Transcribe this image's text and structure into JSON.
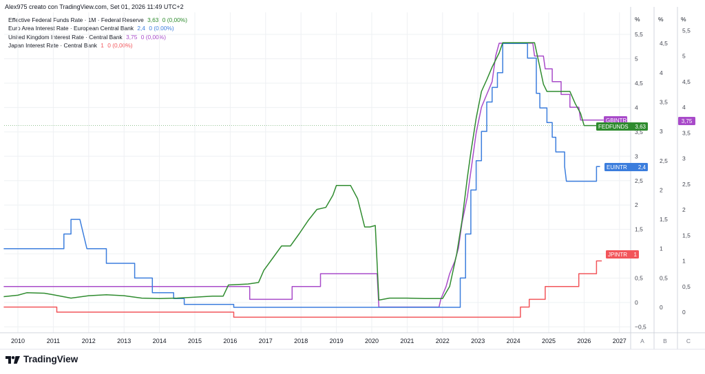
{
  "header": "Alex975 creato con TradingView.com, Set 01, 2026 11:49 UTC+2",
  "brand": "TradingView",
  "colors": {
    "fed": "#2e8b2e",
    "eu": "#3b7ddd",
    "uk": "#a84ac9",
    "jp": "#f2555a",
    "grid": "#eef0f3",
    "axis_text": "#131722"
  },
  "chart_data": {
    "type": "line",
    "title": "",
    "x_ticks": [
      "2010",
      "2011",
      "2012",
      "2013",
      "2014",
      "2015",
      "2016",
      "2017",
      "2018",
      "2019",
      "2020",
      "2021",
      "2022",
      "2023",
      "2024",
      "2025",
      "2026",
      "2027"
    ],
    "axes": {
      "A": {
        "unit": "%",
        "ticks": [
          "5,5",
          "5",
          "4,5",
          "4",
          "3,5",
          "3",
          "2,5",
          "2",
          "1,5",
          "1",
          "0,5",
          "0",
          "−0,5"
        ],
        "range": [
          -0.5,
          5.5
        ]
      },
      "B": {
        "unit": "%",
        "ticks": [
          "4,5",
          "4",
          "3,5",
          "3",
          "2,5",
          "2",
          "1,5",
          "1",
          "0,5",
          "0"
        ],
        "range": [
          0,
          4.5
        ]
      },
      "C": {
        "unit": "%",
        "ticks": [
          "5,5",
          "5",
          "4,5",
          "4",
          "3,5",
          "3",
          "2,5",
          "2",
          "1,5",
          "1",
          "0,5",
          "0"
        ],
        "range": [
          0,
          5.5
        ]
      }
    },
    "axis_letters": [
      "A",
      "B",
      "C"
    ],
    "series": [
      {
        "key": "fed",
        "name": "Effective Federal Funds Rate · 1M · Federal Reserve",
        "last": "3,63",
        "change": "0 (0,00%)",
        "tag": "FEDFUNDS",
        "tag_value": "3,63",
        "axis": "A",
        "points": [
          [
            2009.6,
            0.12
          ],
          [
            2010.0,
            0.15
          ],
          [
            2010.25,
            0.2
          ],
          [
            2010.75,
            0.19
          ],
          [
            2011.0,
            0.16
          ],
          [
            2011.5,
            0.09
          ],
          [
            2012.0,
            0.14
          ],
          [
            2012.5,
            0.16
          ],
          [
            2013.0,
            0.14
          ],
          [
            2013.5,
            0.09
          ],
          [
            2014.0,
            0.08
          ],
          [
            2014.5,
            0.09
          ],
          [
            2015.0,
            0.11
          ],
          [
            2015.5,
            0.13
          ],
          [
            2015.8,
            0.13
          ],
          [
            2015.95,
            0.36
          ],
          [
            2016.5,
            0.38
          ],
          [
            2016.8,
            0.41
          ],
          [
            2016.95,
            0.66
          ],
          [
            2017.2,
            0.91
          ],
          [
            2017.45,
            1.16
          ],
          [
            2017.7,
            1.16
          ],
          [
            2017.95,
            1.41
          ],
          [
            2018.2,
            1.68
          ],
          [
            2018.45,
            1.91
          ],
          [
            2018.7,
            1.95
          ],
          [
            2018.9,
            2.2
          ],
          [
            2019.0,
            2.4
          ],
          [
            2019.4,
            2.4
          ],
          [
            2019.6,
            2.13
          ],
          [
            2019.8,
            1.55
          ],
          [
            2019.95,
            1.55
          ],
          [
            2020.1,
            1.58
          ],
          [
            2020.2,
            0.05
          ],
          [
            2020.5,
            0.09
          ],
          [
            2020.8,
            0.09
          ],
          [
            2021.0,
            0.09
          ],
          [
            2021.5,
            0.08
          ],
          [
            2022.0,
            0.08
          ],
          [
            2022.2,
            0.33
          ],
          [
            2022.4,
            1.0
          ],
          [
            2022.55,
            1.68
          ],
          [
            2022.7,
            2.56
          ],
          [
            2022.8,
            3.08
          ],
          [
            2022.95,
            3.78
          ],
          [
            2023.1,
            4.33
          ],
          [
            2023.25,
            4.57
          ],
          [
            2023.4,
            4.83
          ],
          [
            2023.6,
            5.12
          ],
          [
            2023.7,
            5.33
          ],
          [
            2024.6,
            5.33
          ],
          [
            2024.75,
            4.83
          ],
          [
            2024.85,
            4.48
          ],
          [
            2024.95,
            4.33
          ],
          [
            2025.6,
            4.33
          ],
          [
            2025.75,
            4.08
          ],
          [
            2025.9,
            3.88
          ],
          [
            2026.0,
            3.63
          ],
          [
            2026.5,
            3.63
          ]
        ]
      },
      {
        "key": "eu",
        "name": "Euro Area Interest Rate · European Central Bank",
        "last": "2,4",
        "change": "0 (0,00%)",
        "tag": "EUINTR",
        "tag_value": "2,4",
        "axis": "B",
        "points": [
          [
            2009.6,
            1.0
          ],
          [
            2011.3,
            1.0
          ],
          [
            2011.3,
            1.25
          ],
          [
            2011.5,
            1.25
          ],
          [
            2011.5,
            1.5
          ],
          [
            2011.75,
            1.5
          ],
          [
            2011.85,
            1.25
          ],
          [
            2011.95,
            1.0
          ],
          [
            2012.5,
            1.0
          ],
          [
            2012.5,
            0.75
          ],
          [
            2013.3,
            0.75
          ],
          [
            2013.3,
            0.5
          ],
          [
            2013.8,
            0.5
          ],
          [
            2013.8,
            0.25
          ],
          [
            2014.4,
            0.25
          ],
          [
            2014.4,
            0.15
          ],
          [
            2014.7,
            0.15
          ],
          [
            2014.7,
            0.05
          ],
          [
            2016.1,
            0.05
          ],
          [
            2016.1,
            0.0
          ],
          [
            2022.5,
            0.0
          ],
          [
            2022.5,
            0.5
          ],
          [
            2022.65,
            0.5
          ],
          [
            2022.65,
            1.25
          ],
          [
            2022.8,
            1.25
          ],
          [
            2022.8,
            2.0
          ],
          [
            2022.95,
            2.0
          ],
          [
            2022.95,
            2.5
          ],
          [
            2023.1,
            2.5
          ],
          [
            2023.1,
            3.0
          ],
          [
            2023.25,
            3.0
          ],
          [
            2023.25,
            3.5
          ],
          [
            2023.4,
            3.5
          ],
          [
            2023.4,
            3.75
          ],
          [
            2023.55,
            3.75
          ],
          [
            2023.55,
            4.0
          ],
          [
            2023.7,
            4.0
          ],
          [
            2023.7,
            4.5
          ],
          [
            2024.4,
            4.5
          ],
          [
            2024.4,
            4.25
          ],
          [
            2024.65,
            4.25
          ],
          [
            2024.65,
            3.65
          ],
          [
            2024.75,
            3.65
          ],
          [
            2024.75,
            3.4
          ],
          [
            2024.95,
            3.4
          ],
          [
            2024.95,
            3.15
          ],
          [
            2025.1,
            3.15
          ],
          [
            2025.1,
            2.9
          ],
          [
            2025.2,
            2.9
          ],
          [
            2025.2,
            2.65
          ],
          [
            2025.45,
            2.65
          ],
          [
            2025.45,
            2.4
          ],
          [
            2025.5,
            2.15
          ],
          [
            2026.35,
            2.15
          ],
          [
            2026.35,
            2.4
          ],
          [
            2026.45,
            2.4
          ]
        ]
      },
      {
        "key": "uk",
        "name": "United Kingdom Interest Rate · Central Bank",
        "last": "3,75",
        "change": "0 (0,00%)",
        "tag": "GBINTR",
        "tag_value": "3,75",
        "axis": "C",
        "points": [
          [
            2009.6,
            0.5
          ],
          [
            2016.55,
            0.5
          ],
          [
            2016.55,
            0.25
          ],
          [
            2017.75,
            0.25
          ],
          [
            2017.75,
            0.5
          ],
          [
            2018.55,
            0.5
          ],
          [
            2018.55,
            0.75
          ],
          [
            2020.15,
            0.75
          ],
          [
            2020.2,
            0.1
          ],
          [
            2021.9,
            0.1
          ],
          [
            2021.95,
            0.25
          ],
          [
            2022.1,
            0.5
          ],
          [
            2022.2,
            0.75
          ],
          [
            2022.35,
            1.0
          ],
          [
            2022.45,
            1.25
          ],
          [
            2022.55,
            1.75
          ],
          [
            2022.7,
            2.25
          ],
          [
            2022.85,
            3.0
          ],
          [
            2022.95,
            3.5
          ],
          [
            2023.1,
            4.0
          ],
          [
            2023.25,
            4.25
          ],
          [
            2023.4,
            4.5
          ],
          [
            2023.5,
            5.0
          ],
          [
            2023.6,
            5.25
          ],
          [
            2024.55,
            5.25
          ],
          [
            2024.6,
            5.0
          ],
          [
            2024.85,
            5.0
          ],
          [
            2024.9,
            4.75
          ],
          [
            2025.1,
            4.75
          ],
          [
            2025.1,
            4.5
          ],
          [
            2025.35,
            4.5
          ],
          [
            2025.35,
            4.25
          ],
          [
            2025.6,
            4.25
          ],
          [
            2025.6,
            4.0
          ],
          [
            2025.85,
            4.0
          ],
          [
            2025.9,
            3.75
          ],
          [
            2026.55,
            3.75
          ]
        ]
      },
      {
        "key": "jp",
        "name": "Japan Interest Rate · Central Bank",
        "last": "1",
        "change": "0 (0,00%)",
        "tag": "JPINTR",
        "tag_value": "1",
        "axis": "C",
        "points": [
          [
            2009.6,
            0.1
          ],
          [
            2011.1,
            0.1
          ],
          [
            2011.1,
            0.0
          ],
          [
            2016.1,
            0.0
          ],
          [
            2016.1,
            -0.1
          ],
          [
            2024.2,
            -0.1
          ],
          [
            2024.2,
            0.1
          ],
          [
            2024.45,
            0.1
          ],
          [
            2024.45,
            0.25
          ],
          [
            2024.9,
            0.25
          ],
          [
            2024.9,
            0.5
          ],
          [
            2025.85,
            0.5
          ],
          [
            2025.85,
            0.75
          ],
          [
            2026.35,
            0.75
          ],
          [
            2026.35,
            1.0
          ],
          [
            2026.5,
            1.0
          ]
        ]
      }
    ]
  }
}
